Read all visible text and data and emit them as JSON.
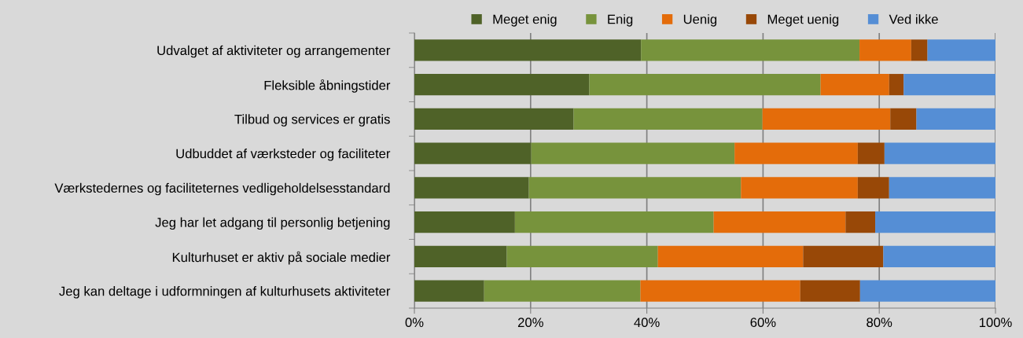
{
  "chart_data": {
    "type": "bar",
    "orientation": "horizontal",
    "stacked": true,
    "categories": [
      "Udvalget af aktiviteter og arrangementer",
      "Fleksible åbningstider",
      "Tilbud og services er gratis",
      "Udbuddet af værksteder og faciliteter",
      "Værkstedernes og faciliteternes vedligeholdelsesstandard",
      "Jeg har let adgang til personlig betjening",
      "Kulturhuset er aktiv på sociale medier",
      "Jeg kan deltage i udformningen af kulturhusets aktiviteter"
    ],
    "series": [
      {
        "name": "Meget enig",
        "color": "#4f6228",
        "values": [
          39.0,
          30.1,
          27.4,
          20.1,
          19.7,
          17.3,
          15.9,
          12.0
        ]
      },
      {
        "name": "Enig",
        "color": "#77933c",
        "values": [
          37.6,
          39.8,
          32.5,
          35.0,
          36.5,
          34.2,
          26.0,
          26.9
        ]
      },
      {
        "name": "Uenig",
        "color": "#e46c0a",
        "values": [
          8.9,
          11.8,
          22.0,
          21.2,
          20.1,
          22.7,
          25.0,
          27.5
        ]
      },
      {
        "name": "Meget uenig",
        "color": "#984807",
        "values": [
          2.8,
          2.5,
          4.5,
          4.6,
          5.4,
          5.1,
          13.8,
          10.3
        ]
      },
      {
        "name": "Ved ikke",
        "color": "#558ed5",
        "values": [
          11.7,
          15.8,
          13.6,
          19.1,
          18.3,
          20.7,
          19.3,
          23.3
        ]
      }
    ],
    "xlim": [
      0,
      100
    ],
    "xticks": [
      {
        "value": 0,
        "label": "0%"
      },
      {
        "value": 20,
        "label": "20%"
      },
      {
        "value": 40,
        "label": "40%"
      },
      {
        "value": 60,
        "label": "60%"
      },
      {
        "value": 80,
        "label": "80%"
      },
      {
        "value": 100,
        "label": "100%"
      }
    ],
    "grid": "x",
    "legend": "top"
  }
}
